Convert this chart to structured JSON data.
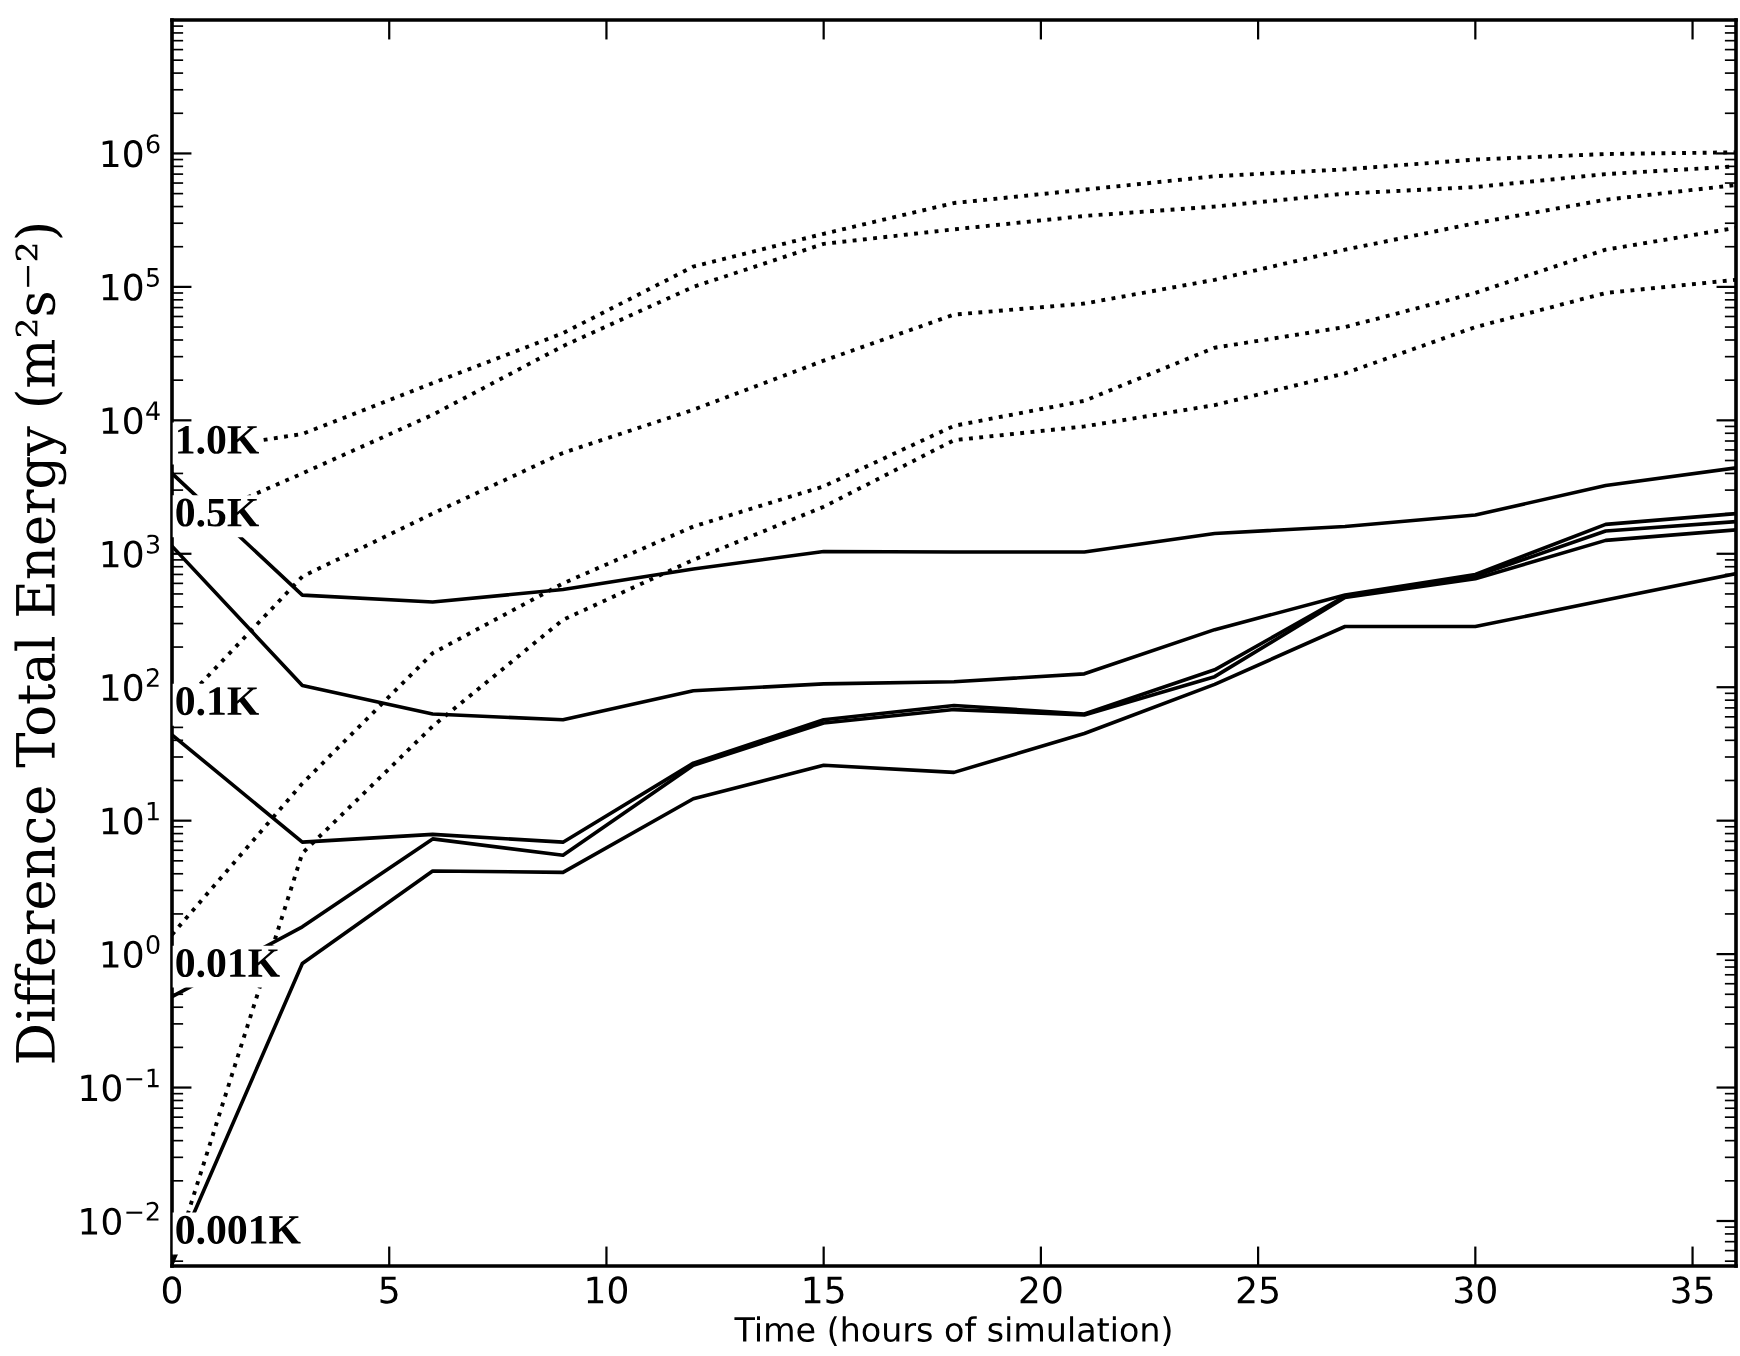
{
  "chart_data": {
    "type": "line",
    "xlabel": "Time (hours of simulation)",
    "ylabel": "Difference Total Energy (m²s⁻²)",
    "x": [
      0,
      3,
      6,
      9,
      12,
      15,
      18,
      21,
      24,
      27,
      30,
      33,
      36
    ],
    "series": [
      {
        "name": "1.0K",
        "color": "#000000",
        "line_style": "solid",
        "values": [
          4000,
          490,
          435,
          540,
          770,
          1040,
          1030,
          1030,
          1420,
          1600,
          1950,
          3250,
          4400
        ]
      },
      {
        "name": "0.5K",
        "color": "#000000",
        "line_style": "solid",
        "values": [
          1140,
          103,
          63,
          57,
          94,
          106,
          110,
          126,
          270,
          490,
          700,
          1660,
          2000
        ]
      },
      {
        "name": "0.1K",
        "color": "#000000",
        "line_style": "solid",
        "values": [
          44,
          6.9,
          7.9,
          6.9,
          27,
          57,
          73,
          63,
          135,
          480,
          680,
          1480,
          1740
        ]
      },
      {
        "name": "0.01K",
        "color": "#000000",
        "line_style": "solid",
        "values": [
          0.48,
          1.6,
          7.3,
          5.5,
          26,
          54,
          68,
          62,
          120,
          470,
          650,
          1260,
          1510
        ]
      },
      {
        "name": "0.001K",
        "color": "#000000",
        "line_style": "solid",
        "values": [
          0.0048,
          0.85,
          4.2,
          4.1,
          14.6,
          26,
          23,
          45,
          105,
          285,
          285,
          450,
          710
        ]
      },
      {
        "color": "#000000",
        "line_style": "dotted",
        "values": [
          5600,
          7900,
          19000,
          45000,
          142000,
          250000,
          425000,
          535000,
          675000,
          760000,
          900000,
          990000,
          1020000
        ]
      },
      {
        "color": "#000000",
        "line_style": "dotted",
        "values": [
          1500,
          4000,
          11000,
          36000,
          100000,
          210000,
          270000,
          340000,
          400000,
          500000,
          560000,
          700000,
          800000
        ]
      },
      {
        "color": "#000000",
        "line_style": "dotted",
        "values": [
          63,
          675,
          2000,
          5700,
          12000,
          28000,
          62000,
          75000,
          113000,
          190000,
          300000,
          450000,
          580000
        ]
      },
      {
        "color": "#000000",
        "line_style": "dotted",
        "values": [
          1.4,
          19,
          180,
          600,
          1600,
          3200,
          9100,
          14000,
          35000,
          50000,
          90000,
          190000,
          277000
        ]
      },
      {
        "color": "#000000",
        "line_style": "dotted",
        "values": [
          0.0048,
          5.7,
          51,
          320,
          900,
          2250,
          7100,
          9000,
          13000,
          22500,
          50000,
          90000,
          113000
        ]
      }
    ],
    "log": "y",
    "xlim": [
      0,
      36
    ],
    "ylim": [
      0.0046,
      10000000
    ],
    "xticks": [
      0,
      5,
      10,
      15,
      20,
      25,
      30,
      35
    ],
    "yticks": [
      {
        "value": 0.01,
        "label": "10$^{−2}$"
      },
      {
        "value": 0.1,
        "label": "10$^{−1}$"
      },
      {
        "value": 1,
        "label": "10$^{0}$"
      },
      {
        "value": 10,
        "label": "10$^{1}$"
      },
      {
        "value": 100,
        "label": "10$^{2}$"
      },
      {
        "value": 1000,
        "label": "10$^{3}$"
      },
      {
        "value": 10000,
        "label": "10$^{4}$"
      },
      {
        "value": 100000,
        "label": "10$^{5}$"
      },
      {
        "value": 1000000,
        "label": "10$^{6}$"
      }
    ],
    "grid": false,
    "legend": false
  }
}
